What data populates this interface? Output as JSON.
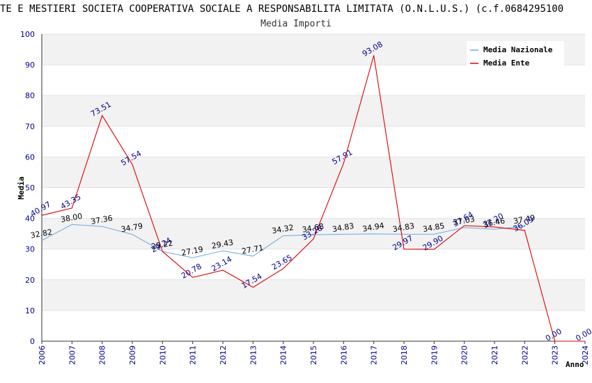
{
  "chart_data": {
    "type": "line",
    "title": "TE E MESTIERI SOCIETA COOPERATIVA SOCIALE A RESPONSABILITA LIMITATA (O.N.L.U.S.) (c.f.0684295100",
    "subtitle": "Media Importi",
    "xlabel": "Anno",
    "ylabel": "Media",
    "ylim": [
      0,
      100
    ],
    "yticks": [
      0,
      10,
      20,
      30,
      40,
      50,
      60,
      70,
      80,
      90,
      100
    ],
    "x": [
      "2006",
      "2007",
      "2008",
      "2009",
      "2010",
      "2011",
      "2012",
      "2013",
      "2014",
      "2015",
      "2016",
      "2017",
      "2018",
      "2019",
      "2020",
      "2021",
      "2022",
      "2023",
      "2024"
    ],
    "grid": true,
    "legend_position": "top-right",
    "series": [
      {
        "name": "Media Nazionale",
        "color": "#6fa8dc",
        "values": [
          32.82,
          38.0,
          37.36,
          34.79,
          29.22,
          27.19,
          29.43,
          27.71,
          34.32,
          34.68,
          34.83,
          34.94,
          34.83,
          34.85,
          37.03,
          36.46,
          37.49,
          null,
          null
        ],
        "labels": [
          "32.82",
          "38.00",
          "37.36",
          "34.79",
          "29.22",
          "27.19",
          "29.43",
          "27.71",
          "34.32",
          "34.68",
          "34.83",
          "34.94",
          "34.83",
          "34.85",
          "37.03",
          "36.46",
          "37.49",
          "",
          ""
        ]
      },
      {
        "name": "Media Ente",
        "color": "#e00000",
        "values": [
          40.97,
          43.35,
          73.51,
          57.54,
          29.24,
          20.78,
          23.14,
          17.54,
          23.65,
          33.28,
          57.91,
          93.08,
          29.97,
          29.9,
          37.64,
          37.2,
          36.09,
          0.0,
          0.0
        ],
        "labels": [
          "40.97",
          "43.35",
          "73.51",
          "57.54",
          "29.24",
          "20.78",
          "23.14",
          "17.54",
          "23.65",
          "33.28",
          "57.91",
          "93.08",
          "29.97",
          "29.90",
          "37.64",
          "37.20",
          "36.09",
          "0.00",
          "0.00"
        ]
      }
    ]
  }
}
